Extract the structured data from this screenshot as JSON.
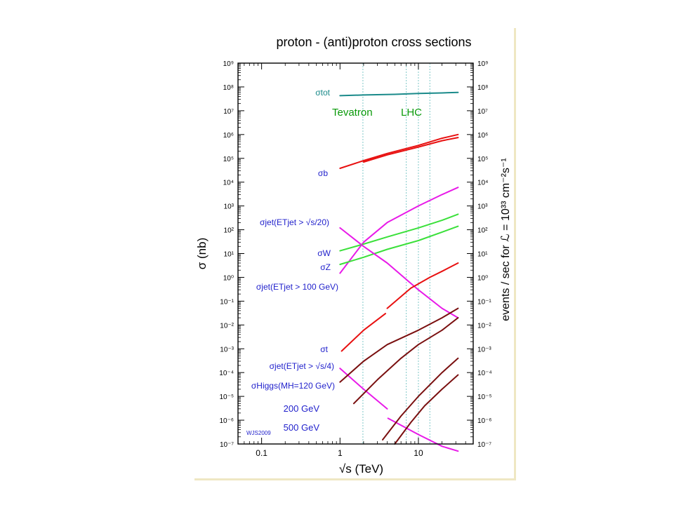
{
  "chart_data": {
    "type": "line",
    "title": "proton - (anti)proton cross sections",
    "xlabel": "√s (TeV)",
    "ylabel_left": "σ (nb)",
    "ylabel_right": "events / sec for ℒ = 10³³ cm⁻²s⁻¹",
    "x_scale": "log",
    "y_scale": "log",
    "xlim": [
      0.05,
      50
    ],
    "ylim": [
      1e-07,
      1000000000.0
    ],
    "x_ticks": [
      {
        "value": 0.1,
        "label": "0.1"
      },
      {
        "value": 1,
        "label": "1"
      },
      {
        "value": 10,
        "label": "10"
      }
    ],
    "y_ticks": [
      {
        "value": 1000000000.0,
        "label": "10⁹"
      },
      {
        "value": 100000000.0,
        "label": "10⁸"
      },
      {
        "value": 10000000.0,
        "label": "10⁷"
      },
      {
        "value": 1000000.0,
        "label": "10⁶"
      },
      {
        "value": 100000.0,
        "label": "10⁵"
      },
      {
        "value": 10000.0,
        "label": "10⁴"
      },
      {
        "value": 1000.0,
        "label": "10³"
      },
      {
        "value": 100.0,
        "label": "10²"
      },
      {
        "value": 10.0,
        "label": "10¹"
      },
      {
        "value": 1,
        "label": "10⁰"
      },
      {
        "value": 0.1,
        "label": "10⁻¹"
      },
      {
        "value": 0.01,
        "label": "10⁻²"
      },
      {
        "value": 0.001,
        "label": "10⁻³"
      },
      {
        "value": 0.0001,
        "label": "10⁻⁴"
      },
      {
        "value": 1e-05,
        "label": "10⁻⁵"
      },
      {
        "value": 1e-06,
        "label": "10⁻⁶"
      },
      {
        "value": 1e-07,
        "label": "10⁻⁷"
      }
    ],
    "reference_lines": [
      {
        "x": 1.96,
        "color": "#7fc8c8"
      },
      {
        "x": 7,
        "color": "#7fc8c8"
      },
      {
        "x": 10,
        "color": "#7fc8c8"
      },
      {
        "x": 14,
        "color": "#7fc8c8"
      }
    ],
    "region_labels": [
      {
        "text": "Tevatron",
        "color": "#0a9a0a"
      },
      {
        "text": "LHC",
        "color": "#0a9a0a"
      }
    ],
    "series": [
      {
        "name": "σtot",
        "color": "#1a8a8a",
        "x": [
          1,
          2,
          5,
          10,
          20,
          32
        ],
        "y": [
          43000000.0,
          46000000.0,
          49000000.0,
          53000000.0,
          56000000.0,
          59000000.0
        ]
      },
      {
        "name": "σb",
        "color": "#e81010",
        "x": [
          1,
          2,
          4,
          10,
          20,
          32
        ],
        "y": [
          38000.0,
          80000.0,
          160000.0,
          350000.0,
          700000.0,
          1000000.0
        ]
      },
      {
        "color": "#e81010",
        "x": [
          2,
          4,
          10,
          20,
          32
        ],
        "y": [
          70000.0,
          140000.0,
          300000.0,
          550000.0,
          750000.0
        ]
      },
      {
        "name": "σjet(ETjet > √s/20)",
        "color": "#e81ae8",
        "x": [
          1,
          2,
          4,
          10,
          20,
          32
        ],
        "y": [
          1.5,
          30,
          200,
          1000,
          3000,
          6000
        ]
      },
      {
        "name": "σW",
        "color": "#3ae03a",
        "x": [
          1,
          2,
          4,
          10,
          20,
          32
        ],
        "y": [
          13,
          25,
          50,
          120,
          250,
          450
        ]
      },
      {
        "name": "σZ",
        "color": "#3ae03a",
        "x": [
          1,
          2,
          4,
          10,
          20,
          32
        ],
        "y": [
          3.5,
          7,
          15,
          35,
          80,
          140
        ]
      },
      {
        "name": "σjet(ETjet > 100 GeV)",
        "color": "#e81ae8",
        "x": [
          1,
          2,
          4,
          10,
          20,
          32
        ],
        "y": [
          120,
          20,
          4,
          0.3,
          0.05,
          0.02
        ]
      },
      {
        "name": "σt",
        "color": "#e81010",
        "x": [
          1.05,
          2,
          3.8
        ],
        "y": [
          0.0008,
          0.006,
          0.03
        ]
      },
      {
        "color": "#e81010",
        "x": [
          4,
          8,
          14,
          20,
          32
        ],
        "y": [
          0.05,
          0.35,
          1.0,
          1.8,
          4.0
        ]
      },
      {
        "name": "σjet(ETjet > √s/4)",
        "color": "#e81ae8",
        "x": [
          1,
          2,
          4
        ],
        "y": [
          0.00015,
          2e-05,
          3e-06
        ]
      },
      {
        "color": "#e81ae8",
        "x": [
          4.1,
          10,
          20,
          32
        ],
        "y": [
          1.2e-06,
          2.5e-07,
          8e-08,
          5e-08
        ]
      },
      {
        "name": "σHiggs(MH=120 GeV)",
        "color": "#7a1010",
        "x": [
          1,
          2,
          4,
          10,
          20,
          32
        ],
        "y": [
          4e-05,
          0.0003,
          0.0015,
          0.006,
          0.02,
          0.05
        ]
      },
      {
        "name": "200 GeV",
        "color": "#7a1010",
        "x": [
          1.5,
          3,
          6,
          10,
          20,
          32
        ],
        "y": [
          5e-06,
          5e-05,
          0.0004,
          0.0015,
          0.006,
          0.02
        ]
      },
      {
        "name": "500 GeV",
        "color": "#7a1010",
        "x": [
          3.5,
          6,
          10,
          20,
          32
        ],
        "y": [
          1.5e-07,
          1.5e-06,
          1e-05,
          0.0001,
          0.0004
        ]
      },
      {
        "color": "#7a1010",
        "x": [
          5,
          8,
          12,
          20,
          32
        ],
        "y": [
          1e-07,
          8e-07,
          4e-06,
          2e-05,
          8e-05
        ]
      }
    ],
    "annotations": [
      {
        "text": "σtot",
        "color": "#1a8a8a"
      },
      {
        "text": "σb",
        "color": "#2222cc"
      },
      {
        "text": "σjet(ETjet > √s/20)",
        "color": "#2222cc"
      },
      {
        "text": "σW",
        "color": "#2222cc"
      },
      {
        "text": "σZ",
        "color": "#2222cc"
      },
      {
        "text": "σjet(ETjet > 100 GeV)",
        "color": "#2222cc"
      },
      {
        "text": "σt",
        "color": "#2222cc"
      },
      {
        "text": "σjet(ETjet > √s/4)",
        "color": "#2222cc"
      },
      {
        "text": "σHiggs(MH=120 GeV)",
        "color": "#2222cc"
      },
      {
        "text": "200 GeV",
        "color": "#2222cc"
      },
      {
        "text": "500 GeV",
        "color": "#2222cc"
      },
      {
        "text": "WJS2009",
        "color": "#2222cc"
      }
    ]
  }
}
